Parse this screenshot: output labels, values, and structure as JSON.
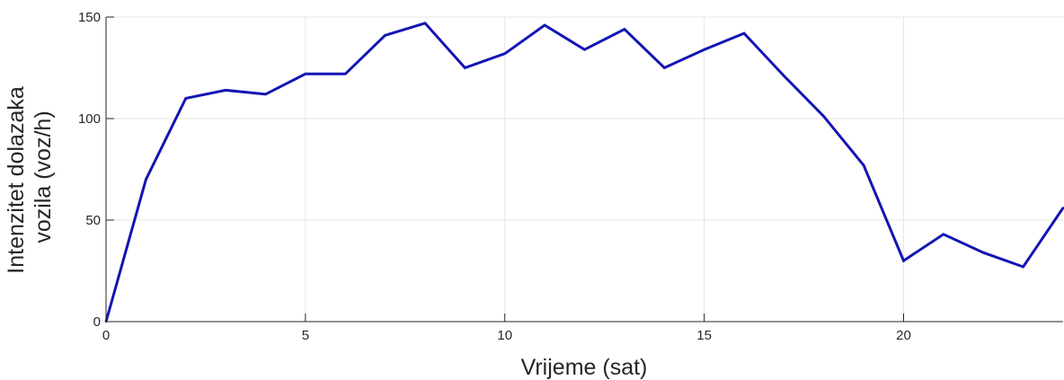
{
  "chart_data": {
    "type": "line",
    "title": "",
    "xlabel": "Vrijeme (sat)",
    "ylabel_lines": [
      "Intenzitet dolazaka",
      "vozila (voz/h)"
    ],
    "xlim": [
      0,
      24
    ],
    "ylim": [
      0,
      150
    ],
    "xticks": [
      0,
      5,
      10,
      15,
      20
    ],
    "yticks": [
      0,
      50,
      100,
      150
    ],
    "grid": true,
    "series": [
      {
        "color": "#1414b4",
        "x": [
          0,
          1,
          2,
          3,
          4,
          5,
          6,
          7,
          8,
          9,
          10,
          11,
          12,
          13,
          14,
          15,
          16,
          17,
          18,
          19,
          20,
          21,
          22,
          23,
          24
        ],
        "y": [
          0,
          70,
          110,
          114,
          112,
          122,
          122,
          141,
          147,
          125,
          132,
          146,
          134,
          144,
          125,
          134,
          142,
          121,
          101,
          77,
          30,
          43,
          34,
          27,
          56
        ]
      }
    ]
  }
}
